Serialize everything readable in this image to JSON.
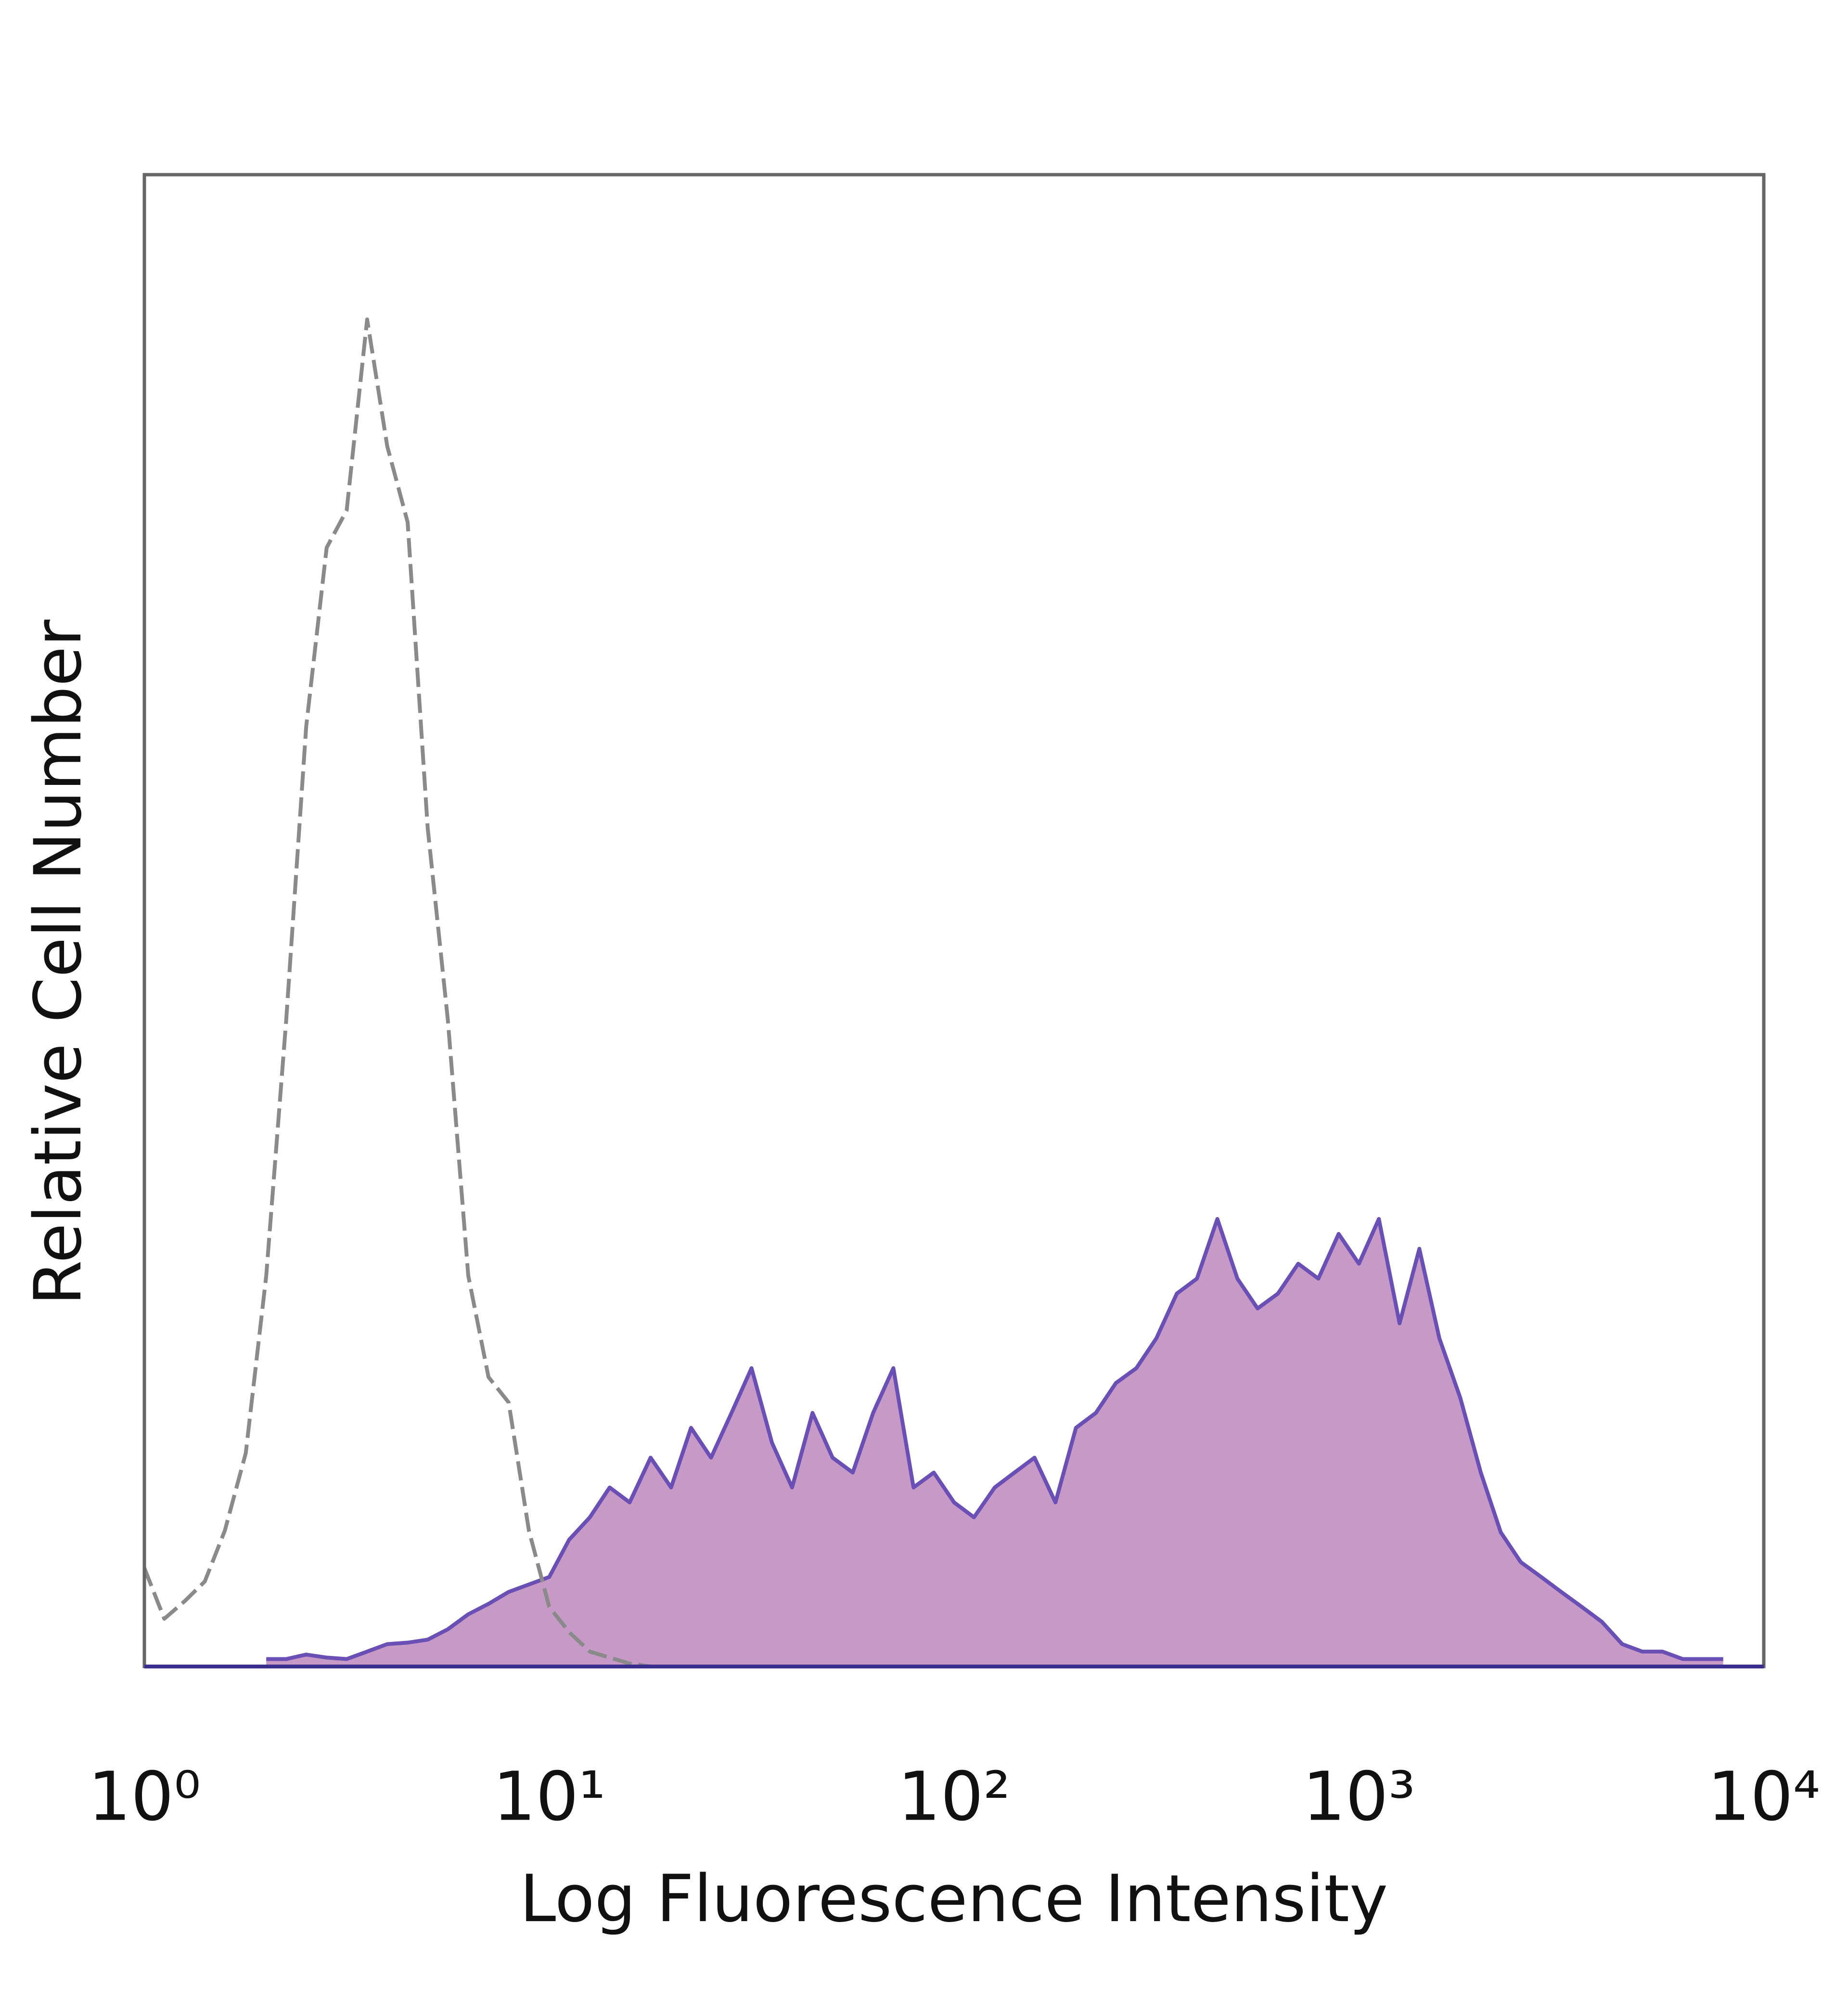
{
  "chart_data": {
    "type": "histogram-overlay",
    "xlabel": "Log Fluorescence Intensity",
    "ylabel": "Relative Cell Number",
    "xscale": "log",
    "grid": false,
    "xlim": [
      1,
      10000
    ],
    "ylim": [
      0,
      100
    ],
    "xticks": [
      {
        "value": 1,
        "label": "10⁰"
      },
      {
        "value": 10,
        "label": "10¹"
      },
      {
        "value": 100,
        "label": "10²"
      },
      {
        "value": 1000,
        "label": "10³"
      },
      {
        "value": 10000,
        "label": "10⁴"
      }
    ],
    "series": [
      {
        "color": "#8a8a8a",
        "fill": null,
        "line_style": "dashed",
        "x": [
          1,
          1.12,
          1.26,
          1.41,
          1.58,
          1.78,
          2,
          2.24,
          2.51,
          2.82,
          3.16,
          3.55,
          3.98,
          4.47,
          5.01,
          5.62,
          6.31,
          7.08,
          7.94,
          8.91,
          10,
          11.2,
          12.6,
          14.1,
          15.8,
          17.8,
          20
        ],
        "values": [
          6.6,
          3.2,
          4.4,
          5.7,
          9.1,
          14.3,
          26.2,
          43.3,
          63,
          75,
          77.5,
          90.3,
          81.8,
          76.7,
          56.2,
          43.3,
          26.2,
          19.4,
          17.7,
          9.1,
          4,
          2.3,
          1,
          0.6,
          0.2,
          0,
          0
        ]
      },
      {
        "color": "#6a4fb5",
        "fill": "#c799c6",
        "line_style": "solid",
        "x": [
          2,
          2.24,
          2.51,
          2.82,
          3.16,
          3.55,
          3.98,
          4.47,
          5.01,
          5.62,
          6.31,
          7.08,
          7.94,
          8.91,
          10,
          11.2,
          12.6,
          14.1,
          15.8,
          17.8,
          20,
          22.4,
          25.1,
          28.2,
          31.6,
          35.5,
          39.8,
          44.7,
          50.1,
          56.2,
          63.1,
          70.8,
          79.4,
          89.1,
          100,
          112,
          126,
          141,
          158,
          178,
          200,
          224,
          251,
          282,
          316,
          355,
          398,
          447,
          501,
          562,
          631,
          708,
          794,
          891,
          1000,
          1120,
          1260,
          1410,
          1580,
          1780,
          2000,
          2240,
          2510,
          2820,
          3160,
          3550,
          3980,
          4470,
          5010,
          5620,
          6310,
          7080,
          7940
        ],
        "values": [
          0.5,
          0.5,
          0.8,
          0.6,
          0.5,
          1,
          1.5,
          1.6,
          1.8,
          2.5,
          3.5,
          4.2,
          5,
          5.5,
          6,
          8.5,
          10,
          12,
          11,
          14,
          12,
          16,
          14,
          17,
          20,
          15,
          12,
          17,
          14,
          13,
          17,
          20,
          12,
          13,
          11,
          10,
          12,
          13,
          14,
          11,
          16,
          17,
          19,
          20,
          22,
          25,
          26,
          30,
          26,
          24,
          25,
          27,
          26,
          29,
          27,
          30,
          23,
          28,
          22,
          18,
          13,
          9,
          7,
          6,
          5,
          4,
          3,
          1.5,
          1,
          1,
          0.5,
          0.5,
          0.5
        ]
      }
    ]
  }
}
